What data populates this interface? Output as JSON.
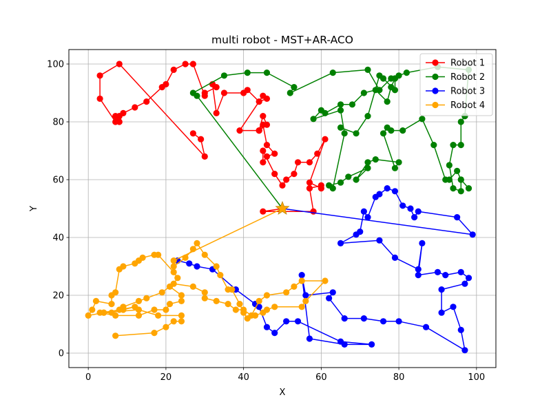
{
  "chart_data": {
    "type": "line",
    "title": "multi robot - MST+AR-ACO",
    "xlabel": "X",
    "ylabel": "Y",
    "xlim": [
      -5,
      105
    ],
    "ylim": [
      -5,
      105
    ],
    "xticks": [
      0,
      20,
      40,
      60,
      80,
      100
    ],
    "yticks": [
      0,
      20,
      40,
      60,
      80,
      100
    ],
    "grid": true,
    "legend_position": "top-right",
    "depot": {
      "x": 50,
      "y": 50,
      "color": "#ffa500",
      "marker": "star"
    },
    "series": [
      {
        "name": "Robot 1",
        "color": "#ff0000",
        "x": [
          50,
          45,
          58,
          57,
          60,
          60,
          57,
          61,
          59,
          57,
          54,
          53,
          51,
          50,
          48,
          45,
          45,
          46,
          48,
          46,
          45,
          44,
          45,
          46,
          44,
          39,
          45,
          46,
          44,
          41,
          40,
          35,
          33,
          32,
          33,
          30,
          30,
          27,
          25,
          22,
          20,
          19,
          15,
          12,
          9,
          8,
          7,
          8,
          7,
          3,
          3,
          8,
          30,
          29,
          27
        ],
        "y": [
          50,
          49,
          49,
          57,
          58,
          57,
          59,
          74,
          69,
          66,
          66,
          62,
          60,
          58,
          62,
          70,
          66,
          68,
          69,
          72,
          79,
          77,
          82,
          79,
          77,
          77,
          89,
          88,
          87,
          91,
          90,
          90,
          83,
          93,
          92,
          90,
          89,
          100,
          100,
          98,
          93,
          92,
          87,
          85,
          83,
          80,
          82,
          82,
          80,
          88,
          96,
          100,
          68,
          74,
          76
        ]
      },
      {
        "name": "Robot 2",
        "color": "#008000",
        "x": [
          50,
          28,
          27,
          35,
          41,
          46,
          53,
          52,
          63,
          72,
          75,
          78,
          79,
          80,
          82,
          90,
          98,
          97,
          97,
          96,
          96,
          94,
          93,
          94,
          96,
          96,
          98,
          96,
          95,
          93,
          92,
          89,
          86,
          81,
          78,
          77,
          76,
          79,
          80,
          74,
          72,
          69,
          72,
          67,
          65,
          62,
          63,
          66,
          65,
          58,
          60,
          61,
          65,
          68,
          71,
          74,
          77,
          78,
          79,
          79,
          76,
          75,
          72,
          69,
          65
        ],
        "y": [
          50,
          89,
          90,
          96,
          97,
          97,
          92,
          90,
          97,
          98,
          91,
          95,
          95,
          96,
          97,
          99,
          98,
          82,
          82,
          80,
          72,
          72,
          65,
          57,
          56,
          60,
          57,
          60,
          63,
          60,
          60,
          72,
          81,
          77,
          77,
          78,
          76,
          64,
          66,
          67,
          66,
          60,
          64,
          61,
          59,
          58,
          57,
          76,
          84,
          81,
          84,
          83,
          86,
          86,
          90,
          91,
          87,
          92,
          95,
          91,
          95,
          96,
          82,
          76,
          78
        ]
      },
      {
        "name": "Robot 3",
        "color": "#0000ff",
        "x": [
          50,
          99,
          95,
          85,
          84,
          83,
          81,
          79,
          77,
          75,
          74,
          72,
          71,
          70,
          69,
          65,
          75,
          79,
          85,
          86,
          85,
          90,
          92,
          96,
          98,
          97,
          91,
          91,
          94,
          96,
          97,
          87,
          80,
          76,
          71,
          66,
          62,
          63,
          56,
          55,
          57,
          66,
          73,
          65,
          54,
          51,
          48,
          46,
          44,
          43,
          38,
          32,
          28,
          26,
          23
        ],
        "y": [
          50,
          41,
          47,
          49,
          47,
          50,
          51,
          56,
          57,
          55,
          54,
          47,
          49,
          42,
          41,
          38,
          39,
          33,
          29,
          38,
          27,
          28,
          27,
          28,
          26,
          24,
          22,
          14,
          16,
          8,
          1,
          9,
          11,
          11,
          12,
          12,
          19,
          21,
          20,
          27,
          5,
          3,
          3,
          4,
          11,
          11,
          7,
          9,
          16,
          17,
          22,
          29,
          30,
          31,
          32
        ]
      },
      {
        "name": "Robot 4",
        "color": "#ffa500",
        "x": [
          50,
          22,
          22,
          25,
          27,
          28,
          30,
          33,
          34,
          36,
          37,
          39,
          40,
          41,
          43,
          45,
          46,
          48,
          55,
          56,
          61,
          55,
          53,
          51,
          46,
          44,
          42,
          40,
          38,
          36,
          33,
          30,
          30,
          27,
          22,
          23,
          22,
          18,
          17,
          14,
          13,
          12,
          9,
          8,
          7,
          6,
          6,
          2,
          1,
          0,
          4,
          6,
          8,
          9,
          13,
          15,
          19,
          21,
          24,
          24,
          21,
          20,
          17,
          13,
          7,
          3,
          9,
          12,
          4,
          13,
          18,
          24,
          24,
          22,
          20,
          17,
          7
        ],
        "y": [
          50,
          32,
          30,
          33,
          36,
          38,
          34,
          30,
          27,
          22,
          22,
          17,
          14,
          12,
          13,
          14,
          15,
          16,
          16,
          18,
          25,
          25,
          23,
          21,
          20,
          18,
          13,
          15,
          15,
          17,
          18,
          19,
          21,
          23,
          24,
          26,
          28,
          34,
          34,
          33,
          32,
          31,
          30,
          29,
          21,
          20,
          17,
          18,
          15,
          13,
          14,
          14,
          15,
          16,
          18,
          19,
          21,
          23,
          20,
          18,
          17,
          15,
          15,
          13,
          13,
          14,
          15,
          16,
          14,
          15,
          13,
          13,
          11,
          11,
          9,
          7,
          6
        ]
      }
    ]
  }
}
